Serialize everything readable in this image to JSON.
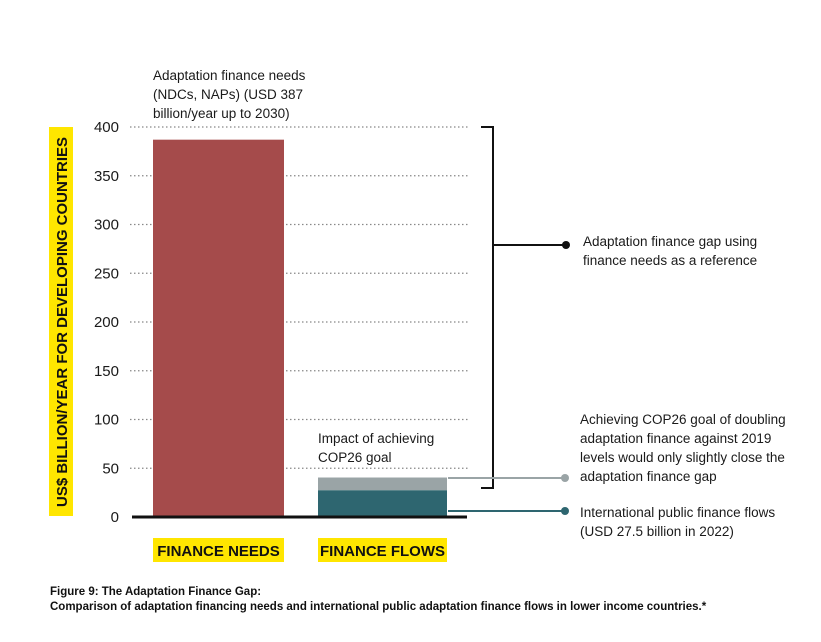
{
  "chart_data": {
    "type": "bar",
    "ylabel": "US$ BILLION/YEAR FOR DEVELOPING COUNTRIES",
    "ylim": [
      0,
      400
    ],
    "yticks": [
      0,
      50,
      100,
      150,
      200,
      250,
      300,
      350,
      400
    ],
    "grid": "dotted horizontal",
    "categories": [
      "FINANCE NEEDS",
      "FINANCE FLOWS"
    ],
    "series": [
      {
        "values": [
          387,
          27.5
        ],
        "color": "#a54b4b",
        "color_flows": "#2e6670"
      },
      {
        "values": [
          0,
          13
        ],
        "color": "#9aa4a6"
      }
    ],
    "annotations": {
      "needs_label": [
        "Adaptation finance needs",
        "(NDCs, NAPs) (USD 387",
        "billion/year up to 2030)"
      ],
      "impact_label": [
        "Impact of achieving",
        "COP26 goal"
      ],
      "gap_label": [
        "Adaptation finance gap using",
        "finance needs as a reference"
      ],
      "cop26_label": [
        "Achieving COP26 goal of doubling",
        "adaptation finance against 2019",
        "levels would only slightly close the",
        "adaptation finance gap"
      ],
      "flows_label": [
        "International public finance flows",
        "(USD 27.5 billion in 2022)"
      ]
    },
    "colors": {
      "category_highlight": "#ffe600",
      "axis": "#111111",
      "grid": "#888888",
      "marker": "#111111"
    }
  },
  "caption": {
    "title": "Figure 9: The Adaptation Finance Gap:",
    "text": "Comparison of adaptation financing needs and international public adaptation finance flows in lower income countries.*"
  }
}
